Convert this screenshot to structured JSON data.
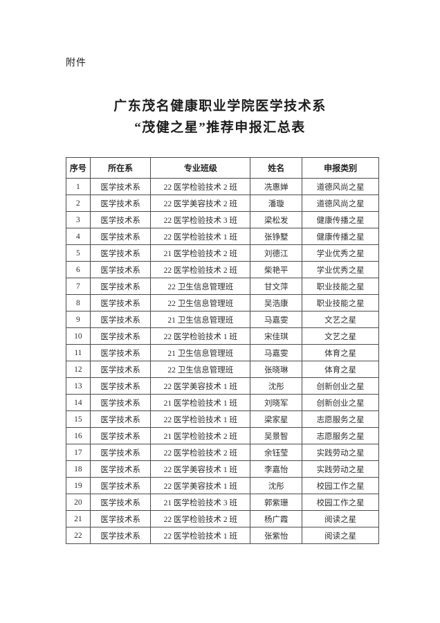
{
  "document": {
    "attachment_label": "附件",
    "title_line1": "广东茂名健康职业学院医学技术系",
    "title_line2": "“茂健之星”推荐申报汇总表"
  },
  "table": {
    "columns": [
      "序号",
      "所在系",
      "专业班级",
      "姓名",
      "申报类别"
    ],
    "rows": [
      {
        "no": "1",
        "department": "医学技术系",
        "class": "22 医学检验技术 2 班",
        "name": "冼惠婵",
        "category": "道德风尚之星"
      },
      {
        "no": "2",
        "department": "医学技术系",
        "class": "22 医学美容技术 2 班",
        "name": "潘璇",
        "category": "道德风尚之星"
      },
      {
        "no": "3",
        "department": "医学技术系",
        "class": "22 医学检验技术 3 班",
        "name": "梁松发",
        "category": "健康传播之星"
      },
      {
        "no": "4",
        "department": "医学技术系",
        "class": "22 医学检验技术 1 班",
        "name": "张铮墅",
        "category": "健康传播之星"
      },
      {
        "no": "5",
        "department": "医学技术系",
        "class": "21 医学检验技术 2 班",
        "name": "刘德江",
        "category": "学业优秀之星"
      },
      {
        "no": "6",
        "department": "医学技术系",
        "class": "22 医学检验技术 2 班",
        "name": "柴艳平",
        "category": "学业优秀之星"
      },
      {
        "no": "7",
        "department": "医学技术系",
        "class": "22 卫生信息管理班",
        "name": "甘文萍",
        "category": "职业技能之星"
      },
      {
        "no": "8",
        "department": "医学技术系",
        "class": "22 卫生信息管理班",
        "name": "吴浩康",
        "category": "职业技能之星"
      },
      {
        "no": "9",
        "department": "医学技术系",
        "class": "21 卫生信息管理班",
        "name": "马嘉雯",
        "category": "文艺之星"
      },
      {
        "no": "10",
        "department": "医学技术系",
        "class": "22 医学检验技术 1 班",
        "name": "宋佳琪",
        "category": "文艺之星"
      },
      {
        "no": "11",
        "department": "医学技术系",
        "class": "21 卫生信息管理班",
        "name": "马嘉雯",
        "category": "体育之星"
      },
      {
        "no": "12",
        "department": "医学技术系",
        "class": "22 卫生信息管理班",
        "name": "张晓琳",
        "category": "体育之星"
      },
      {
        "no": "13",
        "department": "医学技术系",
        "class": "22 医学美容技术 1 班",
        "name": "沈彤",
        "category": "创新创业之星"
      },
      {
        "no": "14",
        "department": "医学技术系",
        "class": "21 医学检验技术 1 班",
        "name": "刘晓军",
        "category": "创新创业之星"
      },
      {
        "no": "15",
        "department": "医学技术系",
        "class": "22 医学检验技术 1 班",
        "name": "梁家星",
        "category": "志愿服务之星"
      },
      {
        "no": "16",
        "department": "医学技术系",
        "class": "21 医学检验技术 2 班",
        "name": "吴景智",
        "category": "志愿服务之星"
      },
      {
        "no": "17",
        "department": "医学技术系",
        "class": "22 医学检验技术 2 班",
        "name": "余钰莹",
        "category": "实践劳动之星"
      },
      {
        "no": "18",
        "department": "医学技术系",
        "class": "22 医学美容技术 1 班",
        "name": "李嘉怡",
        "category": "实践劳动之星"
      },
      {
        "no": "19",
        "department": "医学技术系",
        "class": "22 医学美容技术 1 班",
        "name": "沈彤",
        "category": "校园工作之星"
      },
      {
        "no": "20",
        "department": "医学技术系",
        "class": "21 医学检验技术 3 班",
        "name": "郭紫珊",
        "category": "校园工作之星"
      },
      {
        "no": "21",
        "department": "医学技术系",
        "class": "22 医学检验技术 2 班",
        "name": "杨广霞",
        "category": "阅读之星"
      },
      {
        "no": "22",
        "department": "医学技术系",
        "class": "22 医学检验技术 1 班",
        "name": "张紫怡",
        "category": "阅读之星"
      }
    ]
  }
}
